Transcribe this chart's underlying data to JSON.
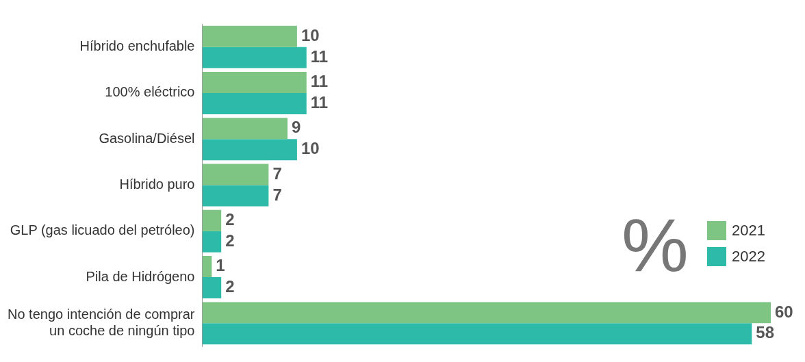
{
  "chart_data": {
    "type": "bar",
    "orientation": "horizontal",
    "categories": [
      "Híbrido enchufable",
      "100% eléctrico",
      "Gasolina/Diésel",
      "Híbrido puro",
      "GLP (gas licuado del petróleo)",
      "Pila de Hidrógeno",
      "No tengo intención de comprar\nun coche de ningún tipo"
    ],
    "series": [
      {
        "name": "2021",
        "color": "#7ec584",
        "values": [
          10,
          11,
          9,
          7,
          2,
          1,
          60
        ]
      },
      {
        "name": "2022",
        "color": "#2ebaa8",
        "values": [
          11,
          11,
          10,
          7,
          2,
          2,
          58
        ]
      }
    ],
    "data_labels": true,
    "legend": "right",
    "annotations": [
      "%"
    ]
  }
}
